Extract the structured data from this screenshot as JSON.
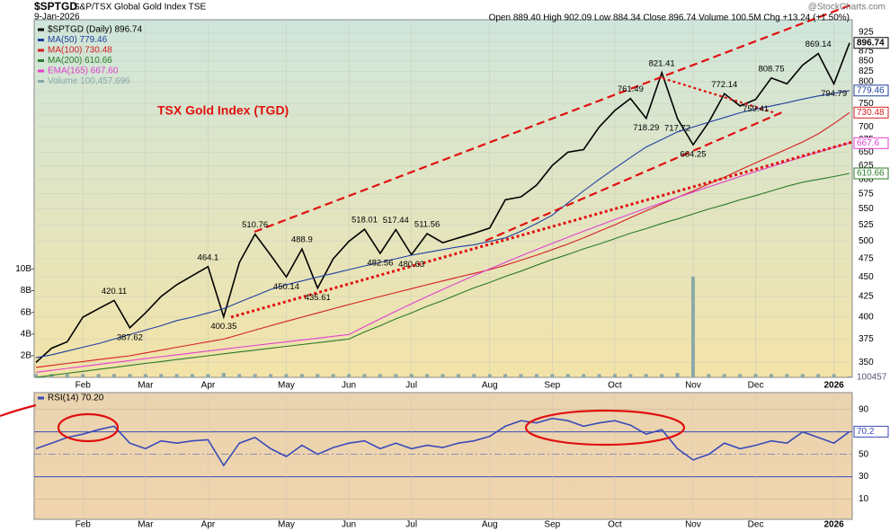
{
  "header": {
    "symbol": "$SPTGD",
    "title": "S&P/TSX Global Gold Index TSE",
    "date": "9-Jan-2026",
    "quote": "Open 889.40 High 902.09 Low 884.34 Close 896.74 Volume 100.5M Chg +13.24 (+1.50%)",
    "credit": "@StockCharts.com"
  },
  "chart_data": [
    {
      "type": "line",
      "annotation": "TSX Gold Index (TGD)",
      "log_scale": true,
      "grid": true,
      "categories": [
        null,
        null,
        null,
        "Feb",
        null,
        null,
        null,
        "Mar",
        null,
        null,
        null,
        "Apr",
        null,
        null,
        null,
        null,
        "May",
        null,
        null,
        null,
        "Jun",
        null,
        null,
        null,
        "Jul",
        null,
        null,
        null,
        null,
        "Aug",
        null,
        null,
        null,
        "Sep",
        null,
        null,
        null,
        "Oct",
        null,
        null,
        null,
        null,
        "Nov",
        null,
        null,
        null,
        "Dec",
        null,
        null,
        null,
        null,
        "2026",
        null
      ],
      "ylim": [
        335,
        960
      ],
      "yticks": [
        350,
        375,
        400,
        425,
        450,
        475,
        500,
        525,
        550,
        575,
        600,
        625,
        650,
        675,
        700,
        725,
        750,
        775,
        800,
        825,
        850,
        875,
        900,
        925
      ],
      "series": [
        {
          "name": "$SPTGD (Daily) 896.74",
          "color": "#000000",
          "values": [
            350,
            365,
            372,
            400,
            410,
            420.11,
            387.62,
            405,
            425,
            440,
            452,
            464.1,
            400.35,
            470,
            510.76,
            480,
            450.14,
            488.9,
            435.61,
            475,
            500,
            518.01,
            482.56,
            517.44,
            480.63,
            511.56,
            498,
            505,
            512,
            520,
            565,
            570,
            590,
            625,
            650,
            655,
            700,
            735,
            761.49,
            718.29,
            821.41,
            717.72,
            664.25,
            710,
            772.14,
            745,
            759.41,
            808.75,
            795,
            840,
            869.14,
            794.79,
            896.74
          ]
        },
        {
          "name": "MA(50) 779.46",
          "color": "#1f3f9f",
          "values": [
            355,
            358,
            362,
            366,
            370,
            375,
            380,
            385,
            390,
            396,
            400,
            405,
            410,
            418,
            426,
            434,
            440,
            445,
            450,
            455,
            460,
            465,
            470,
            475,
            480,
            484,
            488,
            492,
            495,
            500,
            505,
            515,
            527,
            540,
            560,
            580,
            600,
            620,
            640,
            660,
            675,
            690,
            700,
            710,
            720,
            730,
            738,
            745,
            752,
            760,
            767,
            773,
            779.46
          ]
        },
        {
          "name": "MA(100) 730.48",
          "color": "#d42020",
          "values": [
            345,
            347,
            349,
            351,
            353,
            355,
            357,
            360,
            363,
            366,
            369,
            372,
            375,
            380,
            385,
            390,
            395,
            400,
            405,
            410,
            415,
            420,
            425,
            430,
            435,
            440,
            445,
            450,
            455,
            460,
            466,
            473,
            480,
            488,
            496,
            505,
            515,
            525,
            536,
            547,
            558,
            569,
            580,
            592,
            604,
            617,
            630,
            643,
            656,
            670,
            686,
            707,
            730.48
          ]
        },
        {
          "name": "MA(200) 610.66",
          "color": "#2a7a2a",
          "values": [
            335,
            337,
            339,
            341,
            343,
            345,
            347,
            349,
            351,
            353,
            355,
            357,
            359,
            361,
            363,
            365,
            367,
            369,
            371,
            373,
            375,
            383,
            390,
            398,
            405,
            413,
            420,
            428,
            436,
            443,
            451,
            458,
            466,
            474,
            481,
            489,
            496,
            504,
            512,
            519,
            527,
            534,
            542,
            550,
            557,
            565,
            572,
            580,
            588,
            595,
            600,
            605,
            610.66
          ]
        },
        {
          "name": "EMA(165) 667.60",
          "color": "#e040d0",
          "values": [
            340,
            342,
            344,
            346,
            348,
            350,
            352,
            354,
            356,
            358,
            360,
            362,
            364,
            366,
            368,
            370,
            372,
            374,
            376,
            378,
            380,
            389,
            398,
            407,
            416,
            425,
            434,
            443,
            452,
            461,
            470,
            479,
            488,
            497,
            506,
            515,
            524,
            533,
            542,
            551,
            560,
            569,
            578,
            587,
            596,
            605,
            614,
            623,
            632,
            641,
            650,
            659,
            667.6
          ]
        }
      ],
      "peak_labels": [
        420.11,
        387.62,
        464.1,
        400.35,
        510.76,
        450.14,
        488.9,
        435.61,
        518.01,
        482.56,
        517.44,
        480.63,
        511.56,
        761.49,
        718.29,
        821.41,
        717.72,
        664.25,
        772.14,
        759.41,
        808.75,
        869.14,
        794.79
      ],
      "volume": {
        "name": "Volume 100,457,696",
        "color": "#8aa8a8",
        "ylim": [
          0,
          33
        ],
        "volume_tag": "100457",
        "yticks": [
          {
            "value": 2,
            "label": "2B"
          },
          {
            "value": 4,
            "label": "4B"
          },
          {
            "value": 6,
            "label": "6B"
          },
          {
            "value": 8,
            "label": "8B"
          },
          {
            "value": 10,
            "label": "10B"
          }
        ],
        "values": [
          0.3,
          0.3,
          0.3,
          0.3,
          0.3,
          0.3,
          0.3,
          0.3,
          0.3,
          0.3,
          0.3,
          0.3,
          0.4,
          0.3,
          0.3,
          0.3,
          0.3,
          0.3,
          0.3,
          0.3,
          0.3,
          0.3,
          0.3,
          0.3,
          0.3,
          0.3,
          0.3,
          0.3,
          0.3,
          0.3,
          0.3,
          0.3,
          0.3,
          0.3,
          0.3,
          0.3,
          0.3,
          0.3,
          0.3,
          0.3,
          0.3,
          0.4,
          9.3,
          0.3,
          0.3,
          0.3,
          0.3,
          0.3,
          0.3,
          0.3,
          0.3,
          0.3,
          0.1
        ]
      }
    },
    {
      "type": "line",
      "grid": true,
      "categories": [
        null,
        null,
        null,
        "Feb",
        null,
        null,
        null,
        "Mar",
        null,
        null,
        null,
        "Apr",
        null,
        null,
        null,
        null,
        "May",
        null,
        null,
        null,
        "Jun",
        null,
        null,
        null,
        "Jul",
        null,
        null,
        null,
        null,
        "Aug",
        null,
        null,
        null,
        "Sep",
        null,
        null,
        null,
        "Oct",
        null,
        null,
        null,
        null,
        "Nov",
        null,
        null,
        null,
        "Dec",
        null,
        null,
        null,
        null,
        "2026",
        null
      ],
      "ylim": [
        -8,
        105
      ],
      "yticks": [
        10,
        30,
        50,
        70,
        90
      ],
      "series": [
        {
          "name": "RSI(14) 70.20",
          "color": "#3a4ab8",
          "values": [
            55,
            60,
            65,
            68,
            72,
            75,
            60,
            55,
            62,
            60,
            62,
            63,
            40,
            60,
            65,
            55,
            48,
            58,
            50,
            56,
            60,
            62,
            55,
            60,
            55,
            58,
            56,
            60,
            62,
            66,
            75,
            80,
            78,
            82,
            80,
            75,
            78,
            80,
            76,
            68,
            72,
            55,
            45,
            50,
            60,
            55,
            58,
            62,
            60,
            70,
            65,
            60,
            70.2
          ]
        }
      ]
    }
  ]
}
